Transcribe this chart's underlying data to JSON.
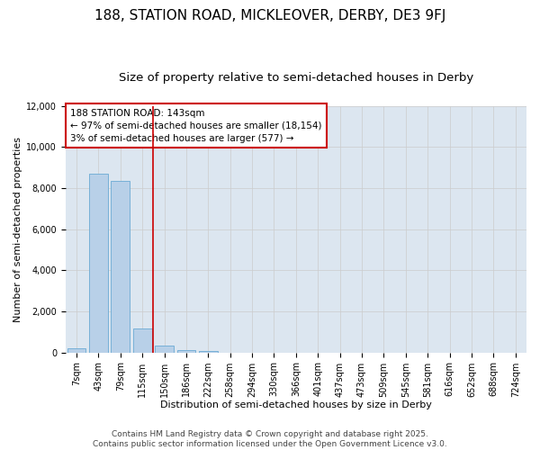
{
  "title": "188, STATION ROAD, MICKLEOVER, DERBY, DE3 9FJ",
  "subtitle": "Size of property relative to semi-detached houses in Derby",
  "xlabel": "Distribution of semi-detached houses by size in Derby",
  "ylabel": "Number of semi-detached properties",
  "footer_line1": "Contains HM Land Registry data © Crown copyright and database right 2025.",
  "footer_line2": "Contains public sector information licensed under the Open Government Licence v3.0.",
  "annotation_line1": "188 STATION ROAD: 143sqm",
  "annotation_line2": "← 97% of semi-detached houses are smaller (18,154)",
  "annotation_line3": "3% of semi-detached houses are larger (577) →",
  "categories": [
    "7sqm",
    "43sqm",
    "79sqm",
    "115sqm",
    "150sqm",
    "186sqm",
    "222sqm",
    "258sqm",
    "294sqm",
    "330sqm",
    "366sqm",
    "401sqm",
    "437sqm",
    "473sqm",
    "509sqm",
    "545sqm",
    "581sqm",
    "616sqm",
    "652sqm",
    "688sqm",
    "724sqm"
  ],
  "bar_values": [
    200,
    8700,
    8350,
    1150,
    330,
    130,
    60,
    0,
    0,
    0,
    0,
    0,
    0,
    0,
    0,
    0,
    0,
    0,
    0,
    0,
    0
  ],
  "bar_color": "#b8d0e8",
  "bar_edge_color": "#6aaad4",
  "red_line_color": "#cc0000",
  "grid_color": "#cccccc",
  "bg_color": "#dce6f0",
  "annotation_box_color": "#cc0000",
  "ylim": [
    0,
    12000
  ],
  "yticks": [
    0,
    2000,
    4000,
    6000,
    8000,
    10000,
    12000
  ],
  "title_fontsize": 11,
  "subtitle_fontsize": 9.5,
  "axis_label_fontsize": 8,
  "tick_fontsize": 7,
  "footer_fontsize": 6.5,
  "annotation_fontsize": 7.5,
  "red_line_x": 3.5
}
